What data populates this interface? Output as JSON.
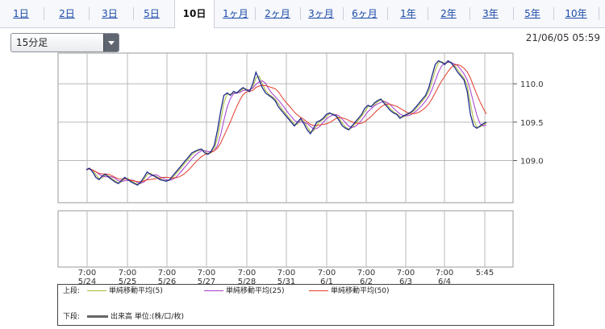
{
  "tabs": [
    {
      "label": "1日"
    },
    {
      "label": "2日"
    },
    {
      "label": "3日"
    },
    {
      "label": "5日"
    },
    {
      "label": "10日",
      "active": true
    },
    {
      "label": "1ヶ月"
    },
    {
      "label": "2ヶ月"
    },
    {
      "label": "3ヶ月"
    },
    {
      "label": "6ヶ月"
    },
    {
      "label": "1年"
    },
    {
      "label": "2年"
    },
    {
      "label": "3年"
    },
    {
      "label": "5年"
    },
    {
      "label": "10年"
    }
  ],
  "interval_select": {
    "value": "15分足"
  },
  "timestamp": "21/06/05 05:59",
  "chart_data": {
    "type": "line",
    "price_axis": {
      "ticks": [
        "110.0",
        "109.5",
        "109.0"
      ],
      "range": [
        108.45,
        110.4
      ]
    },
    "x_ticks": [
      {
        "time": "7:00",
        "date": "5/24"
      },
      {
        "time": "7:00",
        "date": "5/25"
      },
      {
        "time": "7:00",
        "date": "5/26"
      },
      {
        "time": "7:00",
        "date": "5/27"
      },
      {
        "time": "7:00",
        "date": "5/28"
      },
      {
        "time": "7:00",
        "date": "5/31"
      },
      {
        "time": "7:00",
        "date": "6/1"
      },
      {
        "time": "7:00",
        "date": "6/2"
      },
      {
        "time": "7:00",
        "date": "6/3"
      },
      {
        "time": "7:00",
        "date": "6/4"
      },
      {
        "time": "5:45",
        "date": ""
      }
    ],
    "price_series": [
      108.88,
      108.9,
      108.85,
      108.78,
      108.75,
      108.8,
      108.82,
      108.78,
      108.75,
      108.72,
      108.7,
      108.74,
      108.78,
      108.75,
      108.72,
      108.7,
      108.68,
      108.72,
      108.78,
      108.85,
      108.82,
      108.8,
      108.78,
      108.75,
      108.74,
      108.73,
      108.75,
      108.8,
      108.85,
      108.9,
      108.95,
      109.0,
      109.05,
      109.1,
      109.12,
      109.14,
      109.15,
      109.1,
      109.08,
      109.12,
      109.2,
      109.4,
      109.65,
      109.85,
      109.88,
      109.85,
      109.9,
      109.88,
      109.92,
      109.95,
      109.92,
      109.9,
      110.0,
      110.15,
      110.05,
      109.95,
      109.88,
      109.85,
      109.82,
      109.78,
      109.7,
      109.65,
      109.6,
      109.55,
      109.5,
      109.45,
      109.5,
      109.55,
      109.48,
      109.4,
      109.35,
      109.42,
      109.5,
      109.52,
      109.55,
      109.6,
      109.62,
      109.6,
      109.58,
      109.52,
      109.45,
      109.42,
      109.4,
      109.45,
      109.5,
      109.55,
      109.6,
      109.68,
      109.72,
      109.7,
      109.75,
      109.78,
      109.8,
      109.75,
      109.7,
      109.65,
      109.62,
      109.6,
      109.55,
      109.58,
      109.6,
      109.62,
      109.65,
      109.7,
      109.75,
      109.8,
      109.85,
      109.95,
      110.1,
      110.25,
      110.3,
      110.28,
      110.25,
      110.3,
      110.27,
      110.22,
      110.15,
      110.1,
      110.05,
      109.9,
      109.6,
      109.45,
      109.42,
      109.45,
      109.48,
      109.5
    ],
    "ma_series": [
      {
        "name": "単純移動平均(5)",
        "color": "#a8b838"
      },
      {
        "name": "単純移動平均(25)",
        "color": "#a43ad0"
      },
      {
        "name": "単純移動平均(50)",
        "color": "#e23a2a"
      }
    ],
    "grid": true
  },
  "legend": {
    "upper_label": "上段:",
    "lower_label": "下段:",
    "volume_label": "出来高 単位:(株/口/枚)"
  },
  "colors": {
    "price": "#1c2a8a",
    "grid": "#b8b8b8",
    "tab_link": "#1a4aa8"
  }
}
